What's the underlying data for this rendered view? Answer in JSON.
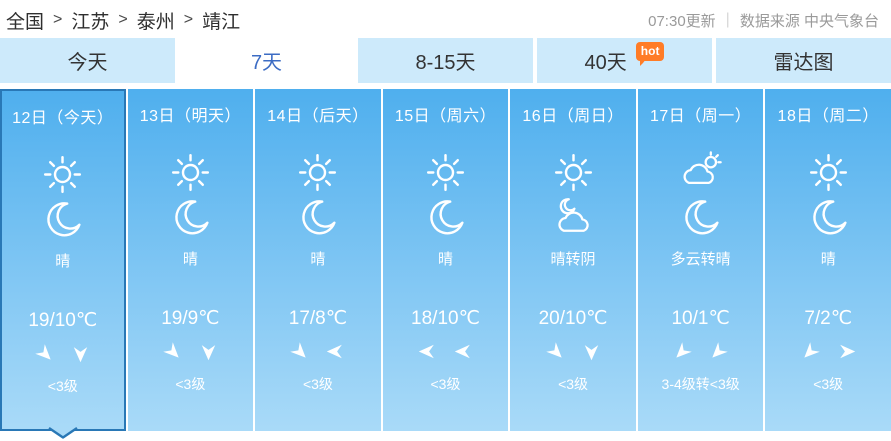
{
  "breadcrumb": {
    "separator": ">",
    "items": [
      "全国",
      "江苏",
      "泰州",
      "靖江"
    ]
  },
  "header_right": {
    "update_time": "07:30更新",
    "divider": "|",
    "source": "数据来源 中央气象台"
  },
  "tabs": [
    {
      "label": "今天",
      "active": false
    },
    {
      "label": "7天",
      "active": true
    },
    {
      "label": "8-15天",
      "active": false
    },
    {
      "label": "40天",
      "active": false,
      "badge": "hot"
    },
    {
      "label": "雷达图",
      "active": false
    }
  ],
  "days": [
    {
      "date": "12日（今天）",
      "day_icon": "sun",
      "night_icon": "moon",
      "weather": "晴",
      "temp": "19/10℃",
      "wind_directions": [
        "down-right",
        "down"
      ],
      "wind_level": "<3级",
      "selected": true
    },
    {
      "date": "13日（明天）",
      "day_icon": "sun",
      "night_icon": "moon",
      "weather": "晴",
      "temp": "19/9℃",
      "wind_directions": [
        "down-right",
        "down"
      ],
      "wind_level": "<3级",
      "selected": false
    },
    {
      "date": "14日（后天）",
      "day_icon": "sun",
      "night_icon": "moon",
      "weather": "晴",
      "temp": "17/8℃",
      "wind_directions": [
        "down-right",
        "left"
      ],
      "wind_level": "<3级",
      "selected": false
    },
    {
      "date": "15日（周六）",
      "day_icon": "sun",
      "night_icon": "moon",
      "weather": "晴",
      "temp": "18/10℃",
      "wind_directions": [
        "left",
        "left"
      ],
      "wind_level": "<3级",
      "selected": false
    },
    {
      "date": "16日（周日）",
      "day_icon": "sun",
      "night_icon": "cloud-moon",
      "weather": "晴转阴",
      "temp": "20/10℃",
      "wind_directions": [
        "down-right",
        "down"
      ],
      "wind_level": "<3级",
      "selected": false
    },
    {
      "date": "17日（周一）",
      "day_icon": "cloud-sun",
      "night_icon": "moon",
      "weather": "多云转晴",
      "temp": "10/1℃",
      "wind_directions": [
        "down-left",
        "down-left"
      ],
      "wind_level": "3-4级转<3级",
      "selected": false
    },
    {
      "date": "18日（周二）",
      "day_icon": "sun",
      "night_icon": "moon",
      "weather": "晴",
      "temp": "7/2℃",
      "wind_directions": [
        "down-left",
        "right"
      ],
      "wind_level": "<3级",
      "selected": false
    }
  ],
  "colors": {
    "accent_blue": "#3c6cc4",
    "tab_bg": "#cdeafb",
    "tab_active_bg": "#ffffff",
    "col_top": "#4fafee",
    "col_bottom": "#a9daf8",
    "selected_border": "#2978b6",
    "hot_badge_bg": "#ff7c26"
  }
}
